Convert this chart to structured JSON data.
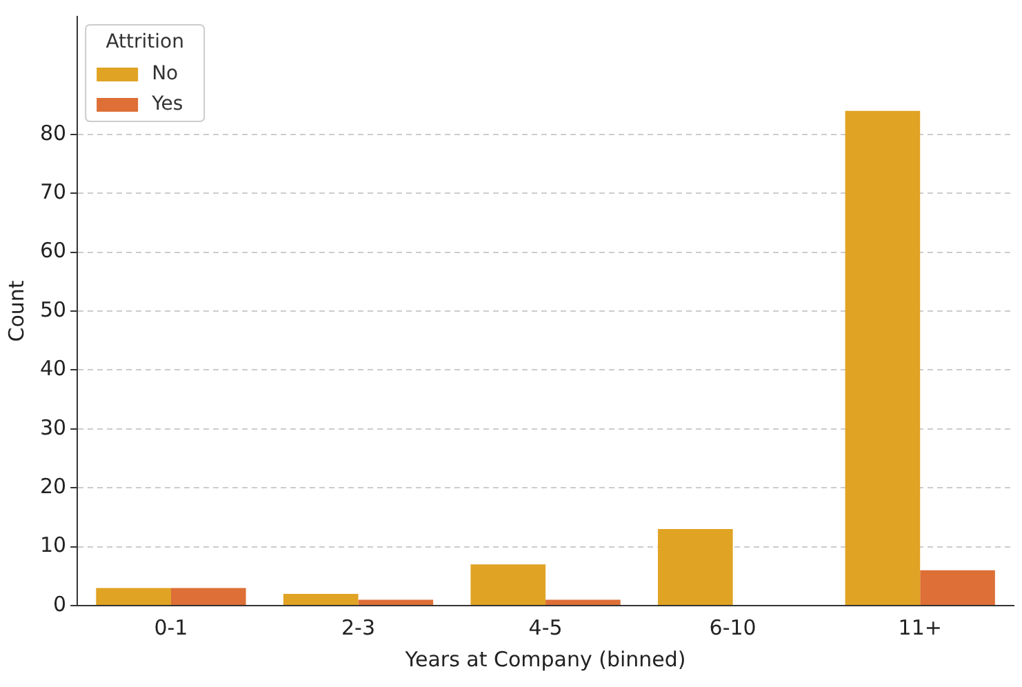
{
  "chart_data": {
    "type": "bar",
    "xlabel": "Years at Company (binned)",
    "ylabel": "Count",
    "legend_title": "Attrition",
    "legend": "top left",
    "grid": "y",
    "categories": [
      "0-1",
      "2-3",
      "4-5",
      "6-10",
      "11+"
    ],
    "series": [
      {
        "name": "No",
        "color": "#e0a323",
        "values": [
          3,
          2,
          7,
          13,
          84
        ]
      },
      {
        "name": "Yes",
        "color": "#dd6f37",
        "values": [
          3,
          1,
          1,
          0,
          6
        ]
      }
    ],
    "ylim": [
      0,
      100
    ],
    "yticks": [
      0,
      10,
      20,
      30,
      40,
      50,
      60,
      70,
      80
    ]
  }
}
